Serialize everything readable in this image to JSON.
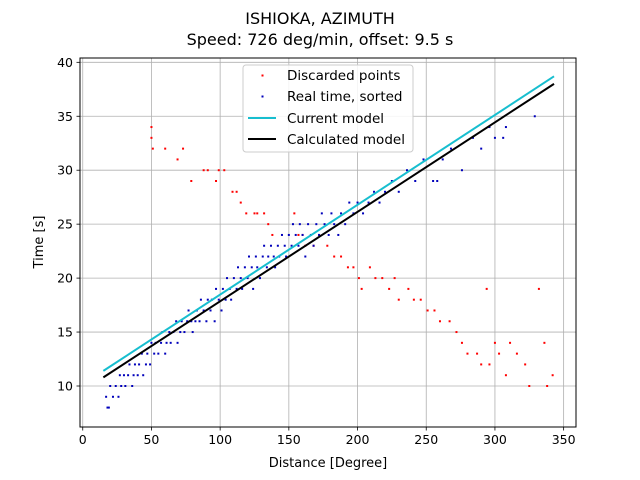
{
  "chart_data": {
    "type": "scatter",
    "title": "ISHIOKA, AZIMUTH",
    "subtitle": "Speed: 726 deg/min, offset: 9.5 s",
    "xlabel": "Distance [Degree]",
    "ylabel": "Time [s]",
    "xlim": [
      -2,
      359
    ],
    "ylim": [
      6.2,
      40.4
    ],
    "xticks": [
      0,
      50,
      100,
      150,
      200,
      250,
      300,
      350
    ],
    "yticks": [
      10,
      15,
      20,
      25,
      30,
      35,
      40
    ],
    "grid": true,
    "legend_position": "top-center",
    "series": [
      {
        "name": "Discarded points",
        "kind": "scatter",
        "color": "#ff0000",
        "points": [
          [
            50,
            34
          ],
          [
            50,
            33
          ],
          [
            51,
            32
          ],
          [
            60,
            32
          ],
          [
            69,
            31
          ],
          [
            73,
            32
          ],
          [
            79,
            29
          ],
          [
            88,
            30
          ],
          [
            91,
            30
          ],
          [
            97,
            29
          ],
          [
            99,
            30
          ],
          [
            103,
            30
          ],
          [
            109,
            28
          ],
          [
            112,
            28
          ],
          [
            115,
            27
          ],
          [
            119,
            26
          ],
          [
            125,
            26
          ],
          [
            127,
            26
          ],
          [
            132,
            26
          ],
          [
            135,
            25
          ],
          [
            138,
            24
          ],
          [
            154,
            26
          ],
          [
            157,
            24
          ],
          [
            160,
            24
          ],
          [
            162,
            23
          ],
          [
            168,
            23
          ],
          [
            172,
            24
          ],
          [
            178,
            23
          ],
          [
            183,
            22
          ],
          [
            188,
            22
          ],
          [
            193,
            21
          ],
          [
            197,
            21
          ],
          [
            201,
            20
          ],
          [
            203,
            19
          ],
          [
            209,
            21
          ],
          [
            213,
            20
          ],
          [
            218,
            20
          ],
          [
            223,
            19
          ],
          [
            227,
            20
          ],
          [
            230,
            18
          ],
          [
            237,
            19
          ],
          [
            241,
            18
          ],
          [
            246,
            18
          ],
          [
            251,
            17
          ],
          [
            256,
            17
          ],
          [
            260,
            16
          ],
          [
            267,
            16
          ],
          [
            272,
            15
          ],
          [
            276,
            14
          ],
          [
            280,
            13
          ],
          [
            287,
            13
          ],
          [
            290,
            12
          ],
          [
            294,
            19
          ],
          [
            296,
            12
          ],
          [
            300,
            14
          ],
          [
            303,
            13
          ],
          [
            308,
            11
          ],
          [
            311,
            14
          ],
          [
            316,
            13
          ],
          [
            322,
            12
          ],
          [
            325,
            10
          ],
          [
            332,
            19
          ],
          [
            336,
            14
          ],
          [
            338,
            10
          ],
          [
            342,
            11
          ]
        ]
      },
      {
        "name": "Real time, sorted",
        "kind": "scatter",
        "color": "#0000bb",
        "points": [
          [
            17,
            9
          ],
          [
            18,
            8
          ],
          [
            19,
            8
          ],
          [
            20,
            10
          ],
          [
            22,
            9
          ],
          [
            24,
            10
          ],
          [
            26,
            9
          ],
          [
            27,
            11
          ],
          [
            28,
            10
          ],
          [
            30,
            11
          ],
          [
            31,
            10
          ],
          [
            33,
            11
          ],
          [
            34,
            12
          ],
          [
            36,
            10
          ],
          [
            37,
            11
          ],
          [
            38,
            12
          ],
          [
            40,
            11
          ],
          [
            41,
            12
          ],
          [
            43,
            13
          ],
          [
            44,
            11
          ],
          [
            46,
            12
          ],
          [
            47,
            13
          ],
          [
            49,
            12
          ],
          [
            50,
            14
          ],
          [
            52,
            13
          ],
          [
            53,
            14
          ],
          [
            55,
            13
          ],
          [
            57,
            14
          ],
          [
            58,
            15
          ],
          [
            60,
            13
          ],
          [
            61,
            14
          ],
          [
            63,
            15
          ],
          [
            64,
            14
          ],
          [
            66,
            15
          ],
          [
            68,
            16
          ],
          [
            69,
            14
          ],
          [
            71,
            15
          ],
          [
            72,
            16
          ],
          [
            74,
            15
          ],
          [
            76,
            16
          ],
          [
            77,
            17
          ],
          [
            79,
            16
          ],
          [
            80,
            15
          ],
          [
            82,
            16
          ],
          [
            83,
            17
          ],
          [
            85,
            16
          ],
          [
            86,
            18
          ],
          [
            88,
            17
          ],
          [
            90,
            16
          ],
          [
            91,
            18
          ],
          [
            93,
            17
          ],
          [
            94,
            18
          ],
          [
            96,
            16
          ],
          [
            97,
            19
          ],
          [
            99,
            18
          ],
          [
            101,
            17
          ],
          [
            102,
            19
          ],
          [
            104,
            18
          ],
          [
            105,
            20
          ],
          [
            107,
            19
          ],
          [
            108,
            18
          ],
          [
            110,
            20
          ],
          [
            112,
            19
          ],
          [
            113,
            21
          ],
          [
            115,
            20
          ],
          [
            116,
            19
          ],
          [
            118,
            21
          ],
          [
            120,
            20
          ],
          [
            121,
            22
          ],
          [
            123,
            21
          ],
          [
            124,
            19
          ],
          [
            126,
            22
          ],
          [
            127,
            21
          ],
          [
            129,
            20
          ],
          [
            131,
            22
          ],
          [
            132,
            23
          ],
          [
            134,
            21
          ],
          [
            135,
            22
          ],
          [
            137,
            23
          ],
          [
            139,
            22
          ],
          [
            140,
            21
          ],
          [
            142,
            23
          ],
          [
            143,
            22
          ],
          [
            145,
            24
          ],
          [
            147,
            23
          ],
          [
            148,
            22
          ],
          [
            150,
            24
          ],
          [
            152,
            23
          ],
          [
            153,
            25
          ],
          [
            155,
            24
          ],
          [
            157,
            23
          ],
          [
            158,
            25
          ],
          [
            160,
            24
          ],
          [
            162,
            22
          ],
          [
            164,
            25
          ],
          [
            166,
            24
          ],
          [
            168,
            23
          ],
          [
            170,
            25
          ],
          [
            172,
            24
          ],
          [
            174,
            26
          ],
          [
            176,
            25
          ],
          [
            179,
            24
          ],
          [
            181,
            26
          ],
          [
            183,
            25
          ],
          [
            186,
            24
          ],
          [
            188,
            26
          ],
          [
            191,
            25
          ],
          [
            194,
            27
          ],
          [
            197,
            26
          ],
          [
            200,
            27
          ],
          [
            204,
            26
          ],
          [
            208,
            27
          ],
          [
            212,
            28
          ],
          [
            216,
            27
          ],
          [
            220,
            28
          ],
          [
            225,
            29
          ],
          [
            230,
            28
          ],
          [
            236,
            30
          ],
          [
            242,
            29
          ],
          [
            248,
            31
          ],
          [
            255,
            29
          ],
          [
            258,
            29
          ],
          [
            262,
            31
          ],
          [
            268,
            32
          ],
          [
            276,
            30
          ],
          [
            284,
            33
          ],
          [
            290,
            32
          ],
          [
            296,
            34
          ],
          [
            300,
            33
          ],
          [
            306,
            33
          ],
          [
            308,
            34
          ],
          [
            329,
            35
          ]
        ]
      },
      {
        "name": "Current model",
        "kind": "line",
        "color": "#17becf",
        "points": [
          [
            15,
            11.4
          ],
          [
            343,
            38.7
          ]
        ]
      },
      {
        "name": "Calculated model",
        "kind": "line",
        "color": "#000000",
        "points": [
          [
            15,
            10.8
          ],
          [
            343,
            38.0
          ]
        ]
      }
    ]
  }
}
